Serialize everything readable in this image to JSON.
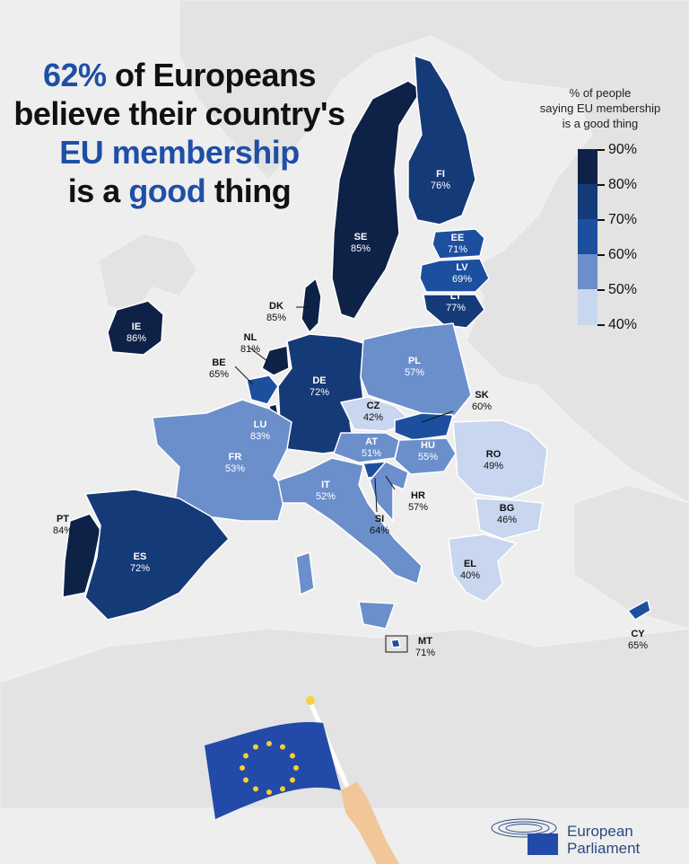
{
  "headline": {
    "part1": "62%",
    "part2": " of Europeans",
    "line2": "believe their country's",
    "line3": "EU membership",
    "line4a": "is a ",
    "line4b": "good",
    "line4c": " thing"
  },
  "legend": {
    "title_l1": "% of people",
    "title_l2": "saying EU membership",
    "title_l3": "is a good thing",
    "ticks": [
      "90%",
      "80%",
      "70%",
      "60%",
      "50%",
      "40%"
    ],
    "colors": [
      "#0e2248",
      "#153a78",
      "#1d4f9f",
      "#6b8fcb",
      "#c8d6ef"
    ]
  },
  "countries": [
    {
      "code": "SE",
      "value": "85%"
    },
    {
      "code": "FI",
      "value": "76%"
    },
    {
      "code": "EE",
      "value": "71%"
    },
    {
      "code": "LV",
      "value": "69%"
    },
    {
      "code": "LT",
      "value": "77%"
    },
    {
      "code": "DK",
      "value": "85%"
    },
    {
      "code": "IE",
      "value": "86%"
    },
    {
      "code": "NL",
      "value": "81%"
    },
    {
      "code": "BE",
      "value": "65%"
    },
    {
      "code": "LU",
      "value": "83%"
    },
    {
      "code": "DE",
      "value": "72%"
    },
    {
      "code": "PL",
      "value": "57%"
    },
    {
      "code": "CZ",
      "value": "42%"
    },
    {
      "code": "SK",
      "value": "60%"
    },
    {
      "code": "AT",
      "value": "51%"
    },
    {
      "code": "HU",
      "value": "55%"
    },
    {
      "code": "RO",
      "value": "49%"
    },
    {
      "code": "FR",
      "value": "53%"
    },
    {
      "code": "IT",
      "value": "52%"
    },
    {
      "code": "HR",
      "value": "57%"
    },
    {
      "code": "SI",
      "value": "64%"
    },
    {
      "code": "BG",
      "value": "46%"
    },
    {
      "code": "EL",
      "value": "40%"
    },
    {
      "code": "PT",
      "value": "84%"
    },
    {
      "code": "ES",
      "value": "72%"
    },
    {
      "code": "MT",
      "value": "71%"
    },
    {
      "code": "CY",
      "value": "65%"
    }
  ],
  "logo": {
    "line1": "European",
    "line2": "Parliament"
  }
}
